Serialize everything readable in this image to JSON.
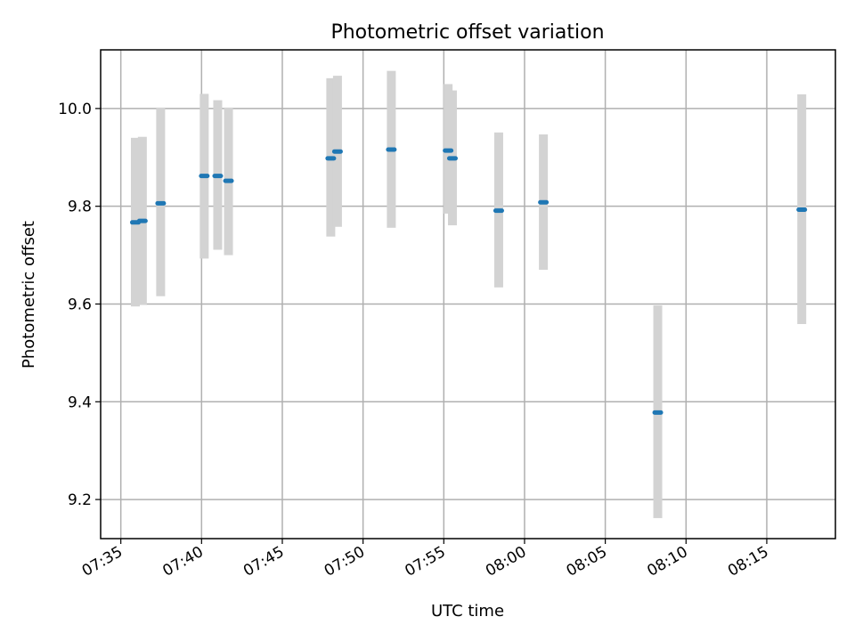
{
  "chart_data": {
    "type": "scatter",
    "title": "Photometric offset variation",
    "xlabel": "UTC time",
    "ylabel": "Photometric offset",
    "grid": true,
    "colors": {
      "point": "#1f77b4",
      "errorbar": "#d3d3d3",
      "grid": "#b0b0b0"
    },
    "xlim": [
      "07:33:45",
      "08:19:15"
    ],
    "ylim": [
      9.12,
      10.12
    ],
    "x_ticks": [
      "07:35",
      "07:40",
      "07:45",
      "07:50",
      "07:55",
      "08:00",
      "08:05",
      "08:10",
      "08:15"
    ],
    "y_ticks": [
      "9.2",
      "9.4",
      "9.6",
      "9.8",
      "10.0"
    ],
    "points": [
      {
        "t": "07:35:54",
        "y": 9.767,
        "err_low": 9.595,
        "err_high": 9.94
      },
      {
        "t": "07:36:20",
        "y": 9.77,
        "err_low": 9.598,
        "err_high": 9.942
      },
      {
        "t": "07:37:28",
        "y": 9.806,
        "err_low": 9.616,
        "err_high": 10.002
      },
      {
        "t": "07:40:10",
        "y": 9.862,
        "err_low": 9.693,
        "err_high": 10.03
      },
      {
        "t": "07:41:00",
        "y": 9.862,
        "err_low": 9.711,
        "err_high": 10.017
      },
      {
        "t": "07:41:40",
        "y": 9.852,
        "err_low": 9.7,
        "err_high": 10.002
      },
      {
        "t": "07:48:00",
        "y": 9.898,
        "err_low": 9.738,
        "err_high": 10.062
      },
      {
        "t": "07:48:25",
        "y": 9.912,
        "err_low": 9.758,
        "err_high": 10.067
      },
      {
        "t": "07:51:45",
        "y": 9.916,
        "err_low": 9.756,
        "err_high": 10.077
      },
      {
        "t": "07:55:16",
        "y": 9.914,
        "err_low": 9.785,
        "err_high": 10.05
      },
      {
        "t": "07:55:32",
        "y": 9.898,
        "err_low": 9.761,
        "err_high": 10.037
      },
      {
        "t": "07:58:24",
        "y": 9.791,
        "err_low": 9.634,
        "err_high": 9.951
      },
      {
        "t": "08:01:10",
        "y": 9.808,
        "err_low": 9.67,
        "err_high": 9.947
      },
      {
        "t": "08:08:15",
        "y": 9.378,
        "err_low": 9.162,
        "err_high": 9.597
      },
      {
        "t": "08:17:10",
        "y": 9.793,
        "err_low": 9.559,
        "err_high": 10.029
      }
    ]
  }
}
